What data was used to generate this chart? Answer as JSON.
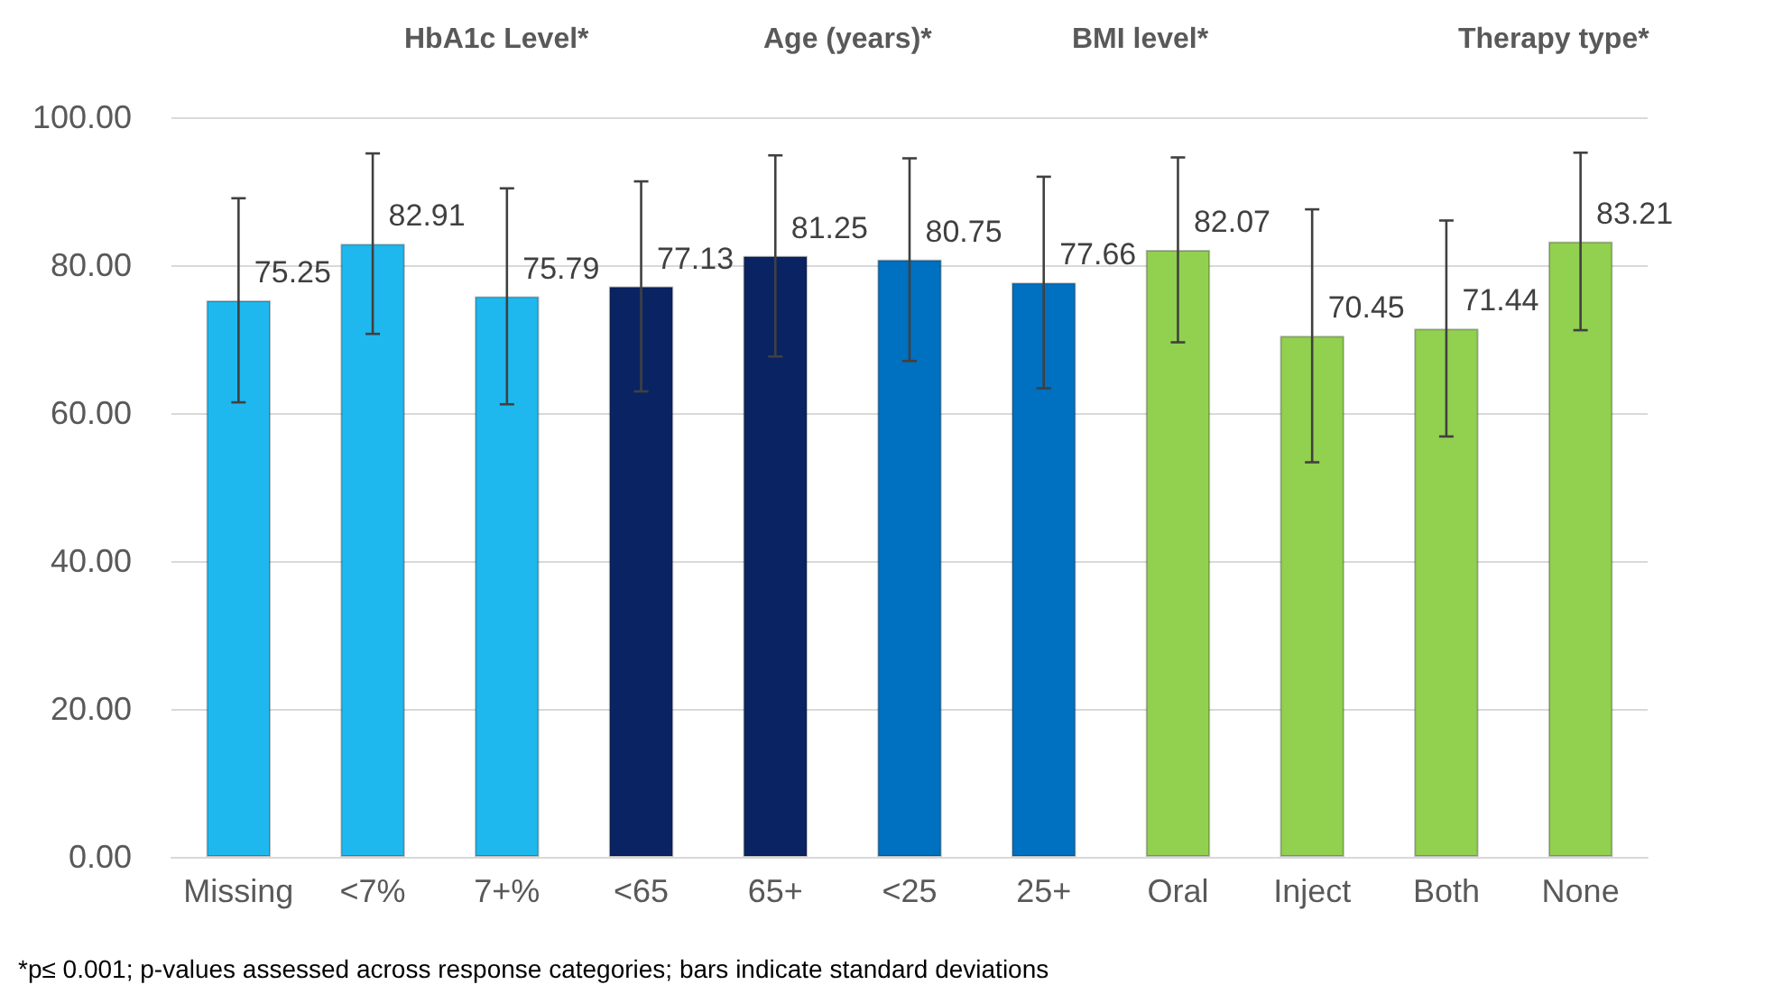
{
  "chart_data": {
    "type": "bar",
    "categories": [
      "Missing",
      "<7%",
      "7+%",
      "<65",
      "65+",
      "<25",
      "25+",
      "Oral",
      "Inject",
      "Both",
      "None"
    ],
    "values": [
      75.25,
      82.91,
      75.79,
      77.13,
      81.25,
      80.75,
      77.66,
      82.07,
      70.45,
      71.44,
      83.21
    ],
    "colors": [
      "#1fb8ee",
      "#1fb8ee",
      "#1fb8ee",
      "#0a2463",
      "#0a2463",
      "#0070c0",
      "#0070c0",
      "#92d050",
      "#92d050",
      "#92d050",
      "#92d050"
    ],
    "errors": [
      13.8,
      12.2,
      14.6,
      14.2,
      13.6,
      13.7,
      14.3,
      12.5,
      17.1,
      14.6,
      12.0
    ],
    "data_labels": true,
    "ylim": [
      0,
      100
    ],
    "yticks": [
      {
        "value": 0,
        "label": "0.00"
      },
      {
        "value": 20,
        "label": "20.00"
      },
      {
        "value": 40,
        "label": "40.00"
      },
      {
        "value": 60,
        "label": "60.00"
      },
      {
        "value": 80,
        "label": "80.00"
      },
      {
        "value": 100,
        "label": "100.00"
      }
    ],
    "grid": "y",
    "annotations": [
      "HbA1c Level*",
      "Age (years)*",
      "BMI level*",
      "Therapy type*",
      "*p≤ 0.001; p-values assessed across response categories; bars indicate standard deviations"
    ]
  }
}
